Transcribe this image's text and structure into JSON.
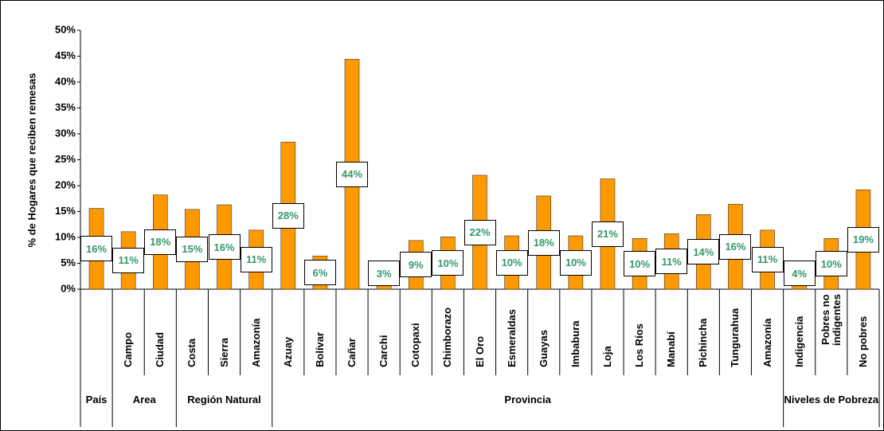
{
  "chart_data": {
    "type": "bar",
    "y_label": "% de Hogares que reciben remesas",
    "color": "#ff9900",
    "ylim": [
      0,
      50
    ],
    "yticks": [
      {
        "value": 0,
        "label": "0%"
      },
      {
        "value": 5,
        "label": "5%"
      },
      {
        "value": 10,
        "label": "10%"
      },
      {
        "value": 15,
        "label": "15%"
      },
      {
        "value": 20,
        "label": "20%"
      },
      {
        "value": 25,
        "label": "25%"
      },
      {
        "value": 30,
        "label": "30%"
      },
      {
        "value": 35,
        "label": "35%"
      },
      {
        "value": 40,
        "label": "40%"
      },
      {
        "value": 45,
        "label": "45%"
      },
      {
        "value": 50,
        "label": "50%"
      }
    ],
    "groups": [
      {
        "name": "País",
        "categories": [
          null
        ],
        "values": [
          15.6
        ],
        "value_labels": [
          "16%"
        ]
      },
      {
        "name": "Area",
        "categories": [
          "Campo",
          "Ciudad"
        ],
        "values": [
          11.1,
          18.2
        ],
        "value_labels": [
          "11%",
          "18%"
        ]
      },
      {
        "name": "Región Natural",
        "categories": [
          "Costa",
          "Sierra",
          "Amazonía"
        ],
        "values": [
          15.4,
          16.3,
          11.4
        ],
        "value_labels": [
          "15%",
          "16%",
          "11%"
        ]
      },
      {
        "name": "Provincia",
        "categories": [
          "Azuay",
          "Bolívar",
          "Cañar",
          "Carchi",
          "Cotopaxi",
          "Chimborazo",
          "El Oro",
          "Esmeraldas",
          "Guayas",
          "Imbabura",
          "Loja",
          "Los Ríos",
          "Manabí",
          "Pichincha",
          "Tungurahua",
          "Amazonía"
        ],
        "values": [
          28.4,
          6.4,
          44.4,
          3.0,
          9.4,
          10.1,
          22.0,
          10.3,
          18.0,
          10.3,
          21.3,
          9.8,
          10.7,
          14.4,
          16.4,
          11.4
        ],
        "value_labels": [
          "28%",
          "6%",
          "44%",
          "3%",
          "9%",
          "10%",
          "22%",
          "10%",
          "18%",
          "10%",
          "21%",
          "10%",
          "11%",
          "14%",
          "16%",
          "11%"
        ]
      },
      {
        "name": "Niveles de Pobreza",
        "categories": [
          "Indigencia",
          "Pobres no indigentes",
          "No pobres"
        ],
        "values": [
          4.0,
          9.8,
          19.2
        ],
        "value_labels": [
          "4%",
          "10%",
          "19%"
        ]
      }
    ]
  }
}
